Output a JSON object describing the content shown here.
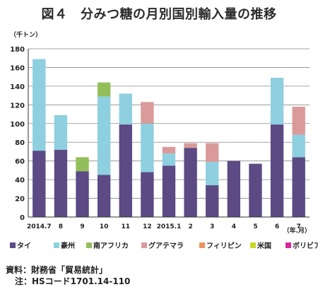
{
  "title": "図４　分みつ糖の月別国別輸入量の推移",
  "footnote_source": "資料：財務省「貿易統計」",
  "footnote_note": "注：HSコード1701.14-110",
  "chart_data": {
    "type": "bar",
    "stacked": true,
    "ylabel": "（千トン）",
    "xlabel": "（年.月）",
    "ylim": [
      0,
      180
    ],
    "yticks": [
      0,
      20,
      40,
      60,
      80,
      100,
      120,
      140,
      160,
      180
    ],
    "grid": true,
    "legend_position": "bottom",
    "categories": [
      "2014.7",
      "8",
      "9",
      "10",
      "11",
      "12",
      "2015.1",
      "2",
      "3",
      "4",
      "5",
      "6",
      "7"
    ],
    "series": [
      {
        "name": "タイ",
        "color": "#5b4a84",
        "values": [
          71,
          72,
          49,
          45,
          99,
          48,
          55,
          74,
          34,
          60,
          57,
          99,
          64
        ]
      },
      {
        "name": "豪州",
        "color": "#8ecfe0",
        "values": [
          98,
          37,
          0,
          84,
          33,
          52,
          13,
          0,
          25,
          0,
          0,
          50,
          24
        ]
      },
      {
        "name": "南アフリカ",
        "color": "#93bf5a",
        "values": [
          0,
          0,
          15,
          15,
          0,
          0,
          0,
          0,
          0,
          0,
          0,
          0,
          0
        ]
      },
      {
        "name": "グアテマラ",
        "color": "#da9a9a",
        "values": [
          0,
          0,
          0,
          0,
          0,
          23,
          7,
          5,
          20,
          0,
          0,
          0,
          30
        ]
      },
      {
        "name": "フィリピン",
        "color": "#e8945a",
        "values": [
          0,
          0,
          0,
          0,
          0,
          0,
          0,
          0,
          0,
          0,
          0,
          0,
          0
        ]
      },
      {
        "name": "米国",
        "color": "#c8d62a",
        "values": [
          0,
          0,
          0,
          0,
          0,
          0,
          0,
          0,
          0,
          0,
          0,
          0,
          0
        ]
      },
      {
        "name": "ボリビア",
        "color": "#d6289a",
        "values": [
          0,
          0,
          0,
          0,
          0,
          0,
          0,
          0,
          0,
          0,
          0,
          0,
          0
        ]
      }
    ]
  }
}
